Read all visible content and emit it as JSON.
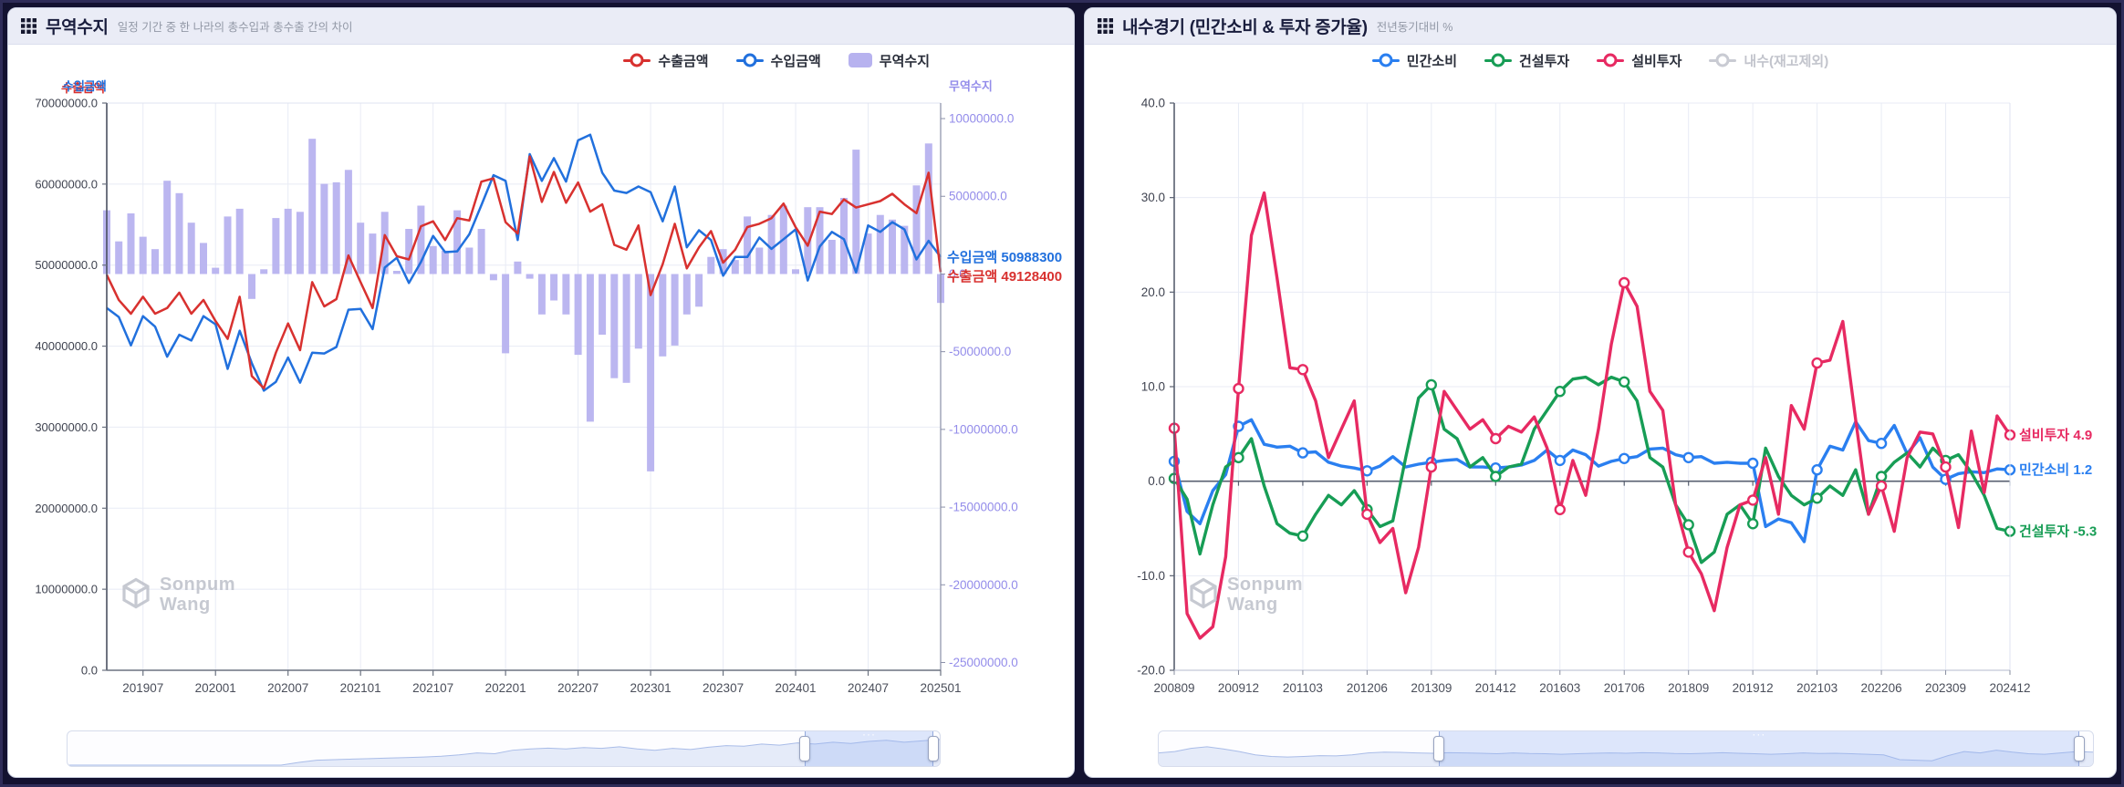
{
  "panels": {
    "left": {
      "title": "무역수지",
      "subtitle": "일정 기간 중 한 나라의 총수입과 총수출 간의 차이",
      "legend": [
        {
          "label": "수출금액",
          "color": "#d8312f",
          "marker": "line",
          "disabled": false
        },
        {
          "label": "수입금액",
          "color": "#2170dd",
          "marker": "line",
          "disabled": false
        },
        {
          "label": "무역수지",
          "color": "#b7b2ef",
          "marker": "bar",
          "disabled": false
        }
      ],
      "axis_titles": {
        "left_import": "수입금액",
        "left_export": "수출금액",
        "right": "무역수지"
      },
      "end_labels": [
        {
          "name": "수입금액",
          "value": "50988300",
          "color": "#2170dd"
        },
        {
          "name": "수출금액",
          "value": "49128400",
          "color": "#d8312f"
        }
      ],
      "watermark": [
        "Sonpum",
        "Wang"
      ],
      "navigator": {
        "selection": [
          0.845,
          0.993
        ],
        "wave": [
          0,
          0,
          0,
          0,
          0,
          0,
          0,
          0,
          0,
          0,
          0,
          0,
          0,
          0.1,
          0.18,
          0.2,
          0.22,
          0.24,
          0.26,
          0.28,
          0.3,
          0.33,
          0.38,
          0.45,
          0.42,
          0.55,
          0.6,
          0.63,
          0.6,
          0.65,
          0.62,
          0.68,
          0.6,
          0.55,
          0.62,
          0.58,
          0.66,
          0.72,
          0.7,
          0.78,
          0.74,
          0.82,
          0.78,
          0.85,
          0.8,
          0.88,
          0.92,
          0.85,
          0.9,
          0.95
        ]
      }
    },
    "right": {
      "title": "내수경기 (민간소비 & 투자 증가율)",
      "subtitle": "전년동기대비 %",
      "legend": [
        {
          "label": "민간소비",
          "color": "#2a7ff0",
          "marker": "line",
          "disabled": false
        },
        {
          "label": "건설투자",
          "color": "#179d55",
          "marker": "line",
          "disabled": false
        },
        {
          "label": "설비투자",
          "color": "#e72a62",
          "marker": "line",
          "disabled": false
        },
        {
          "label": "내수(재고제외)",
          "color": "#c9cbd3",
          "marker": "line",
          "disabled": true
        }
      ],
      "end_labels": [
        {
          "name": "설비투자",
          "value": "4.9",
          "color": "#e72a62"
        },
        {
          "name": "민간소비",
          "value": "1.2",
          "color": "#2a7ff0"
        },
        {
          "name": "건설투자",
          "value": "-5.3",
          "color": "#179d55"
        }
      ],
      "watermark": [
        "Sonpum",
        "Wang"
      ],
      "navigator": {
        "selection": [
          0.3,
          0.985
        ],
        "wave": [
          0.45,
          0.5,
          0.62,
          0.68,
          0.6,
          0.5,
          0.38,
          0.32,
          0.3,
          0.32,
          0.35,
          0.34,
          0.38,
          0.45,
          0.48,
          0.47,
          0.45,
          0.44,
          0.46,
          0.45,
          0.44,
          0.42,
          0.45,
          0.43,
          0.42,
          0.4,
          0.42,
          0.44,
          0.45,
          0.44,
          0.46,
          0.45,
          0.43,
          0.42,
          0.44,
          0.46,
          0.44,
          0.42,
          0.4,
          0.42,
          0.45,
          0.43,
          0.44,
          0.42,
          0.4,
          0.38,
          0.2,
          0.18,
          0.16,
          0.35,
          0.5,
          0.45,
          0.55,
          0.48,
          0.42,
          0.4,
          0.45,
          0.5,
          0.48
        ]
      }
    }
  },
  "chart_data": [
    {
      "type": "line+bar",
      "title": "무역수지",
      "unit_multiplier": 1000000,
      "x": [
        "201904",
        "201905",
        "201906",
        "201907",
        "201908",
        "201909",
        "201910",
        "201911",
        "201912",
        "202001",
        "202002",
        "202003",
        "202004",
        "202005",
        "202006",
        "202007",
        "202008",
        "202009",
        "202010",
        "202011",
        "202012",
        "202101",
        "202102",
        "202103",
        "202104",
        "202105",
        "202106",
        "202107",
        "202108",
        "202109",
        "202110",
        "202111",
        "202112",
        "202201",
        "202202",
        "202203",
        "202204",
        "202205",
        "202206",
        "202207",
        "202208",
        "202209",
        "202210",
        "202211",
        "202212",
        "202301",
        "202302",
        "202303",
        "202304",
        "202305",
        "202306",
        "202307",
        "202308",
        "202309",
        "202310",
        "202311",
        "202312",
        "202401",
        "202402",
        "202403",
        "202404",
        "202405",
        "202406",
        "202407",
        "202408",
        "202409",
        "202410",
        "202411",
        "202412",
        "202501"
      ],
      "x_ticks": [
        "201907",
        "202001",
        "202007",
        "202101",
        "202107",
        "202201",
        "202207",
        "202301",
        "202307",
        "202401",
        "202407",
        "202501"
      ],
      "y_left": {
        "range": [
          0,
          70
        ],
        "ticks": [
          70,
          60,
          50,
          40,
          30,
          20,
          10,
          0
        ],
        "labels": [
          "70000000.0",
          "60000000.0",
          "50000000.0",
          "40000000.0",
          "30000000.0",
          "20000000.0",
          "10000000.0",
          "0.0"
        ]
      },
      "y_right": {
        "range": [
          -25.5,
          11
        ],
        "ticks": [
          10,
          5,
          0,
          -5,
          -10,
          -15,
          -20,
          -25
        ],
        "labels": [
          "10000000.0",
          "5000000.0",
          "0.0",
          "-5000000.0",
          "-10000000.0",
          "-15000000.0",
          "-20000000.0",
          "-25000000.0"
        ]
      },
      "series": [
        {
          "name": "수출금액",
          "type": "line",
          "axis": "left",
          "color": "#d8312f",
          "values": [
            48.8,
            45.7,
            44.0,
            46.1,
            44.0,
            44.7,
            46.6,
            44.0,
            45.7,
            43.1,
            40.9,
            46.1,
            36.3,
            34.8,
            39.2,
            42.8,
            39.5,
            47.9,
            44.9,
            45.8,
            51.2,
            47.9,
            44.7,
            53.7,
            51.1,
            50.7,
            54.8,
            55.4,
            53.1,
            55.8,
            55.5,
            60.3,
            60.7,
            55.3,
            53.9,
            63.4,
            57.8,
            61.5,
            57.7,
            60.2,
            56.6,
            57.5,
            52.5,
            51.9,
            54.9,
            46.3,
            50.1,
            55.1,
            49.6,
            52.2,
            54.2,
            50.3,
            51.9,
            54.7,
            55.1,
            55.8,
            57.6,
            54.7,
            52.4,
            56.6,
            56.3,
            58.1,
            57.1,
            57.5,
            57.9,
            58.8,
            57.5,
            56.4,
            61.4,
            49.13
          ]
        },
        {
          "name": "수입금액",
          "type": "line",
          "axis": "left",
          "color": "#2170dd",
          "values": [
            44.7,
            43.6,
            40.1,
            43.7,
            42.4,
            38.7,
            41.4,
            40.7,
            43.7,
            42.7,
            37.2,
            41.9,
            37.9,
            34.5,
            35.6,
            38.6,
            35.5,
            39.2,
            39.1,
            39.9,
            44.5,
            44.6,
            42.1,
            49.7,
            50.9,
            47.8,
            50.4,
            53.6,
            51.6,
            51.7,
            53.8,
            57.4,
            61.1,
            60.4,
            53.1,
            63.7,
            60.4,
            63.2,
            60.3,
            65.4,
            66.1,
            61.4,
            59.2,
            58.9,
            59.7,
            59.0,
            55.4,
            59.7,
            52.2,
            54.3,
            53.1,
            48.7,
            51.0,
            51.0,
            53.4,
            52.0,
            53.2,
            54.4,
            48.1,
            52.3,
            54.1,
            53.2,
            49.1,
            54.9,
            54.1,
            55.3,
            54.4,
            50.7,
            53.0,
            50.99
          ]
        },
        {
          "name": "무역수지",
          "type": "bar",
          "axis": "right",
          "color": "#b7b2ef",
          "values": [
            4.1,
            2.1,
            3.9,
            2.4,
            1.6,
            6.0,
            5.2,
            3.3,
            2.0,
            0.4,
            3.7,
            4.2,
            -1.6,
            0.3,
            3.6,
            4.2,
            4.0,
            8.7,
            5.8,
            5.9,
            6.7,
            3.3,
            2.6,
            4.0,
            0.2,
            2.9,
            4.4,
            1.8,
            1.5,
            4.1,
            1.7,
            2.9,
            -0.4,
            -5.1,
            0.8,
            -0.3,
            -2.6,
            -1.7,
            -2.6,
            -5.2,
            -9.5,
            -3.9,
            -6.7,
            -7.0,
            -4.8,
            -12.7,
            -5.3,
            -4.6,
            -2.6,
            -2.1,
            1.1,
            1.6,
            0.9,
            3.7,
            1.7,
            3.8,
            4.4,
            0.3,
            4.3,
            4.3,
            2.2,
            4.9,
            8.0,
            2.6,
            3.8,
            3.5,
            3.1,
            5.7,
            8.4,
            -1.86
          ]
        }
      ],
      "grid": true,
      "legend_position": "top"
    },
    {
      "type": "line",
      "title": "내수경기 (민간소비 & 투자 증가율)",
      "ylabel": "전년동기대비 %",
      "x": [
        "200809",
        "200812",
        "200903",
        "200906",
        "200909",
        "200912",
        "201003",
        "201006",
        "201009",
        "201012",
        "201103",
        "201106",
        "201109",
        "201112",
        "201203",
        "201206",
        "201209",
        "201212",
        "201303",
        "201306",
        "201309",
        "201312",
        "201403",
        "201406",
        "201409",
        "201412",
        "201503",
        "201506",
        "201509",
        "201512",
        "201603",
        "201606",
        "201609",
        "201612",
        "201703",
        "201706",
        "201709",
        "201712",
        "201803",
        "201806",
        "201809",
        "201812",
        "201903",
        "201906",
        "201909",
        "201912",
        "202003",
        "202006",
        "202009",
        "202012",
        "202103",
        "202106",
        "202109",
        "202112",
        "202203",
        "202206",
        "202209",
        "202212",
        "202303",
        "202306",
        "202309",
        "202312",
        "202403",
        "202406",
        "202409",
        "202412"
      ],
      "x_ticks": [
        "200809",
        "200912",
        "201103",
        "201206",
        "201309",
        "201412",
        "201603",
        "201706",
        "201809",
        "201912",
        "202103",
        "202206",
        "202309",
        "202412"
      ],
      "y": {
        "range": [
          -20,
          40
        ],
        "ticks": [
          40,
          30,
          20,
          10,
          0,
          -10,
          -20
        ],
        "labels": [
          "40.0",
          "30.0",
          "20.0",
          "10.0",
          "0.0",
          "-10.0",
          "-20.0"
        ]
      },
      "marker_every": 5,
      "series": [
        {
          "name": "민간소비",
          "color": "#2a7ff0",
          "values": [
            2.1,
            -3.2,
            -4.5,
            -1.0,
            0.7,
            5.8,
            6.5,
            3.9,
            3.6,
            3.7,
            3.0,
            3.1,
            2.0,
            1.6,
            1.4,
            1.1,
            1.6,
            2.6,
            1.5,
            1.8,
            2.0,
            2.2,
            2.3,
            1.5,
            1.5,
            1.4,
            1.5,
            1.7,
            2.2,
            3.3,
            2.2,
            3.3,
            2.8,
            1.6,
            2.1,
            2.4,
            2.6,
            3.4,
            3.5,
            2.8,
            2.5,
            2.6,
            1.9,
            2.0,
            1.9,
            1.9,
            -4.8,
            -4.0,
            -4.4,
            -6.4,
            1.2,
            3.7,
            3.3,
            6.3,
            4.3,
            4.0,
            5.9,
            2.9,
            4.6,
            1.5,
            0.2,
            0.8,
            1.0,
            0.9,
            1.3,
            1.2
          ]
        },
        {
          "name": "건설투자",
          "color": "#179d55",
          "values": [
            0.3,
            -1.9,
            -7.7,
            -2.5,
            1.5,
            2.5,
            4.5,
            -0.5,
            -4.5,
            -5.5,
            -5.8,
            -3.5,
            -1.5,
            -2.5,
            -1.0,
            -3.0,
            -4.8,
            -4.2,
            2.5,
            8.8,
            10.2,
            5.5,
            4.5,
            1.5,
            2.5,
            0.5,
            1.5,
            1.8,
            5.5,
            7.5,
            9.5,
            10.8,
            11.0,
            10.2,
            11.0,
            10.5,
            8.5,
            2.5,
            1.5,
            -2.5,
            -4.6,
            -8.6,
            -7.5,
            -3.5,
            -2.5,
            -4.5,
            3.5,
            0.5,
            -1.5,
            -2.5,
            -1.8,
            -0.5,
            -1.5,
            1.2,
            -3.5,
            0.5,
            2.0,
            3.0,
            1.5,
            3.5,
            2.2,
            2.8,
            0.9,
            -1.5,
            -5.0,
            -5.3
          ]
        },
        {
          "name": "설비투자",
          "color": "#e72a62",
          "values": [
            5.6,
            -14.0,
            -16.6,
            -15.4,
            -8.0,
            9.8,
            26.0,
            30.5,
            21.5,
            12.0,
            11.8,
            8.5,
            2.5,
            5.5,
            8.5,
            -3.5,
            -6.5,
            -5.0,
            -11.8,
            -7.0,
            1.5,
            9.5,
            7.5,
            5.5,
            6.5,
            4.5,
            5.8,
            5.2,
            6.8,
            3.5,
            -3.0,
            2.2,
            -1.5,
            5.5,
            14.5,
            21.0,
            18.5,
            9.5,
            7.5,
            -2.5,
            -7.5,
            -9.8,
            -13.7,
            -7.0,
            -2.5,
            -2.0,
            2.5,
            -3.5,
            8.0,
            5.5,
            12.5,
            12.8,
            16.9,
            6.5,
            -3.5,
            -0.5,
            -5.3,
            2.5,
            5.2,
            5.0,
            1.5,
            -4.9,
            5.3,
            -1.2,
            6.9,
            4.9
          ]
        }
      ],
      "grid": true,
      "legend_position": "top"
    }
  ]
}
